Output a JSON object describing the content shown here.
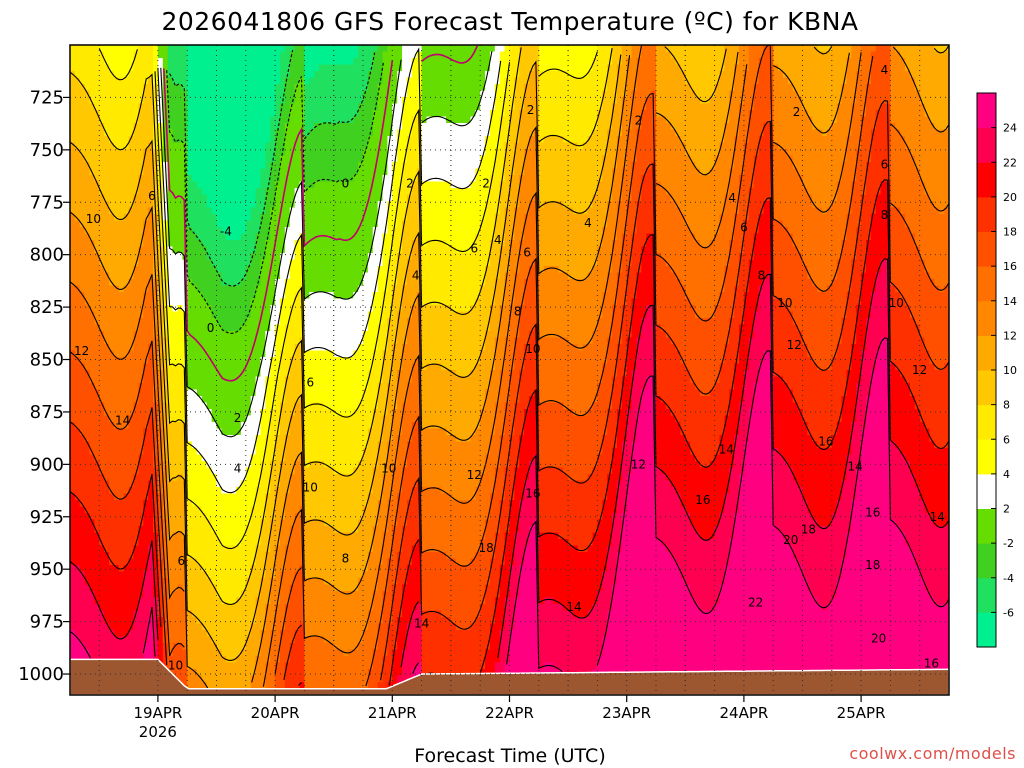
{
  "chart_data": {
    "type": "heatmap",
    "title": "2026041806 GFS Forecast Temperature (ºC) for KBNA",
    "xlabel": "Forecast Time (UTC)",
    "ylabel": "",
    "credit": "coolwx.com/models",
    "y_axis": {
      "unit": "hPa",
      "range": [
        700,
        1010
      ],
      "inverted": true,
      "ticks": [
        725,
        750,
        775,
        800,
        825,
        850,
        875,
        900,
        925,
        950,
        975,
        1000
      ],
      "tick_labels": [
        "725",
        "750",
        "775",
        "800",
        "825",
        "850",
        "875",
        "900",
        "925",
        "950",
        "975",
        "1000"
      ]
    },
    "x_axis": {
      "unit": "days since 18APR 06Z",
      "range": [
        0,
        7.5
      ],
      "ticks": [
        0.75,
        1.75,
        2.75,
        3.75,
        4.75,
        5.75,
        6.75
      ],
      "tick_labels": [
        "19APR",
        "20APR",
        "21APR",
        "22APR",
        "23APR",
        "24APR",
        "25APR"
      ],
      "first_tick_sublabel": "2026"
    },
    "colorbar": {
      "levels": [
        -8,
        -6,
        -4,
        -2,
        2,
        4,
        6,
        8,
        10,
        12,
        14,
        16,
        18,
        20,
        22,
        24,
        26
      ],
      "tick_labels": [
        "-6",
        "-4",
        "-2",
        "2",
        "4",
        "6",
        "8",
        "10",
        "12",
        "14",
        "16",
        "18",
        "20",
        "22",
        "24"
      ],
      "colors": [
        "#00f090",
        "#20e060",
        "#40d020",
        "#66dd00",
        "#ffffff",
        "#ffff00",
        "#ffea00",
        "#ffc800",
        "#ffaa00",
        "#ff8800",
        "#ff7000",
        "#ff5000",
        "#ff3000",
        "#ff0000",
        "#ff0050",
        "#ff0080"
      ]
    },
    "zero_contour_color": "#c00070",
    "contour_labels": [
      {
        "text": "10",
        "x": 0.2,
        "p": 783
      },
      {
        "text": "6",
        "x": 0.7,
        "p": 772
      },
      {
        "text": "12",
        "x": 0.1,
        "p": 846
      },
      {
        "text": "14",
        "x": 0.45,
        "p": 879
      },
      {
        "text": "10",
        "x": 0.9,
        "p": 996
      },
      {
        "text": "-4",
        "x": 1.33,
        "p": 789
      },
      {
        "text": "0",
        "x": 1.2,
        "p": 835
      },
      {
        "text": "2",
        "x": 1.43,
        "p": 878
      },
      {
        "text": "4",
        "x": 1.43,
        "p": 902
      },
      {
        "text": "6",
        "x": 0.95,
        "p": 946
      },
      {
        "text": "6",
        "x": 2.05,
        "p": 861
      },
      {
        "text": "10",
        "x": 2.05,
        "p": 911
      },
      {
        "text": "8",
        "x": 2.35,
        "p": 945
      },
      {
        "text": "0",
        "x": 2.35,
        "p": 766
      },
      {
        "text": "2",
        "x": 2.9,
        "p": 766
      },
      {
        "text": "4",
        "x": 2.95,
        "p": 810
      },
      {
        "text": "10",
        "x": 2.72,
        "p": 902
      },
      {
        "text": "14",
        "x": 3.0,
        "p": 976
      },
      {
        "text": "2",
        "x": 3.55,
        "p": 766
      },
      {
        "text": "2",
        "x": 3.93,
        "p": 731
      },
      {
        "text": "4",
        "x": 3.65,
        "p": 793
      },
      {
        "text": "6",
        "x": 3.45,
        "p": 797
      },
      {
        "text": "6",
        "x": 3.9,
        "p": 799
      },
      {
        "text": "8",
        "x": 3.82,
        "p": 827
      },
      {
        "text": "10",
        "x": 3.95,
        "p": 845
      },
      {
        "text": "12",
        "x": 3.45,
        "p": 905
      },
      {
        "text": "16",
        "x": 3.95,
        "p": 914
      },
      {
        "text": "18",
        "x": 3.55,
        "p": 940
      },
      {
        "text": "4",
        "x": 4.42,
        "p": 785
      },
      {
        "text": "2",
        "x": 4.85,
        "p": 736
      },
      {
        "text": "12",
        "x": 4.85,
        "p": 900
      },
      {
        "text": "14",
        "x": 4.3,
        "p": 968
      },
      {
        "text": "4",
        "x": 5.65,
        "p": 773
      },
      {
        "text": "6",
        "x": 5.75,
        "p": 787
      },
      {
        "text": "8",
        "x": 5.9,
        "p": 810
      },
      {
        "text": "10",
        "x": 6.1,
        "p": 823
      },
      {
        "text": "12",
        "x": 6.18,
        "p": 843
      },
      {
        "text": "14",
        "x": 5.6,
        "p": 893
      },
      {
        "text": "16",
        "x": 5.4,
        "p": 917
      },
      {
        "text": "16",
        "x": 6.45,
        "p": 889
      },
      {
        "text": "14",
        "x": 6.7,
        "p": 901
      },
      {
        "text": "18",
        "x": 6.3,
        "p": 931
      },
      {
        "text": "20",
        "x": 6.15,
        "p": 936
      },
      {
        "text": "22",
        "x": 5.85,
        "p": 966
      },
      {
        "text": "2",
        "x": 6.2,
        "p": 732
      },
      {
        "text": "4",
        "x": 6.95,
        "p": 712
      },
      {
        "text": "6",
        "x": 6.95,
        "p": 757
      },
      {
        "text": "8",
        "x": 6.95,
        "p": 781
      },
      {
        "text": "10",
        "x": 7.05,
        "p": 823
      },
      {
        "text": "12",
        "x": 7.25,
        "p": 855
      },
      {
        "text": "16",
        "x": 6.85,
        "p": 923
      },
      {
        "text": "18",
        "x": 6.85,
        "p": 948
      },
      {
        "text": "14",
        "x": 7.4,
        "p": 925
      },
      {
        "text": "20",
        "x": 6.9,
        "p": 983
      },
      {
        "text": "16",
        "x": 7.35,
        "p": 995
      }
    ]
  }
}
